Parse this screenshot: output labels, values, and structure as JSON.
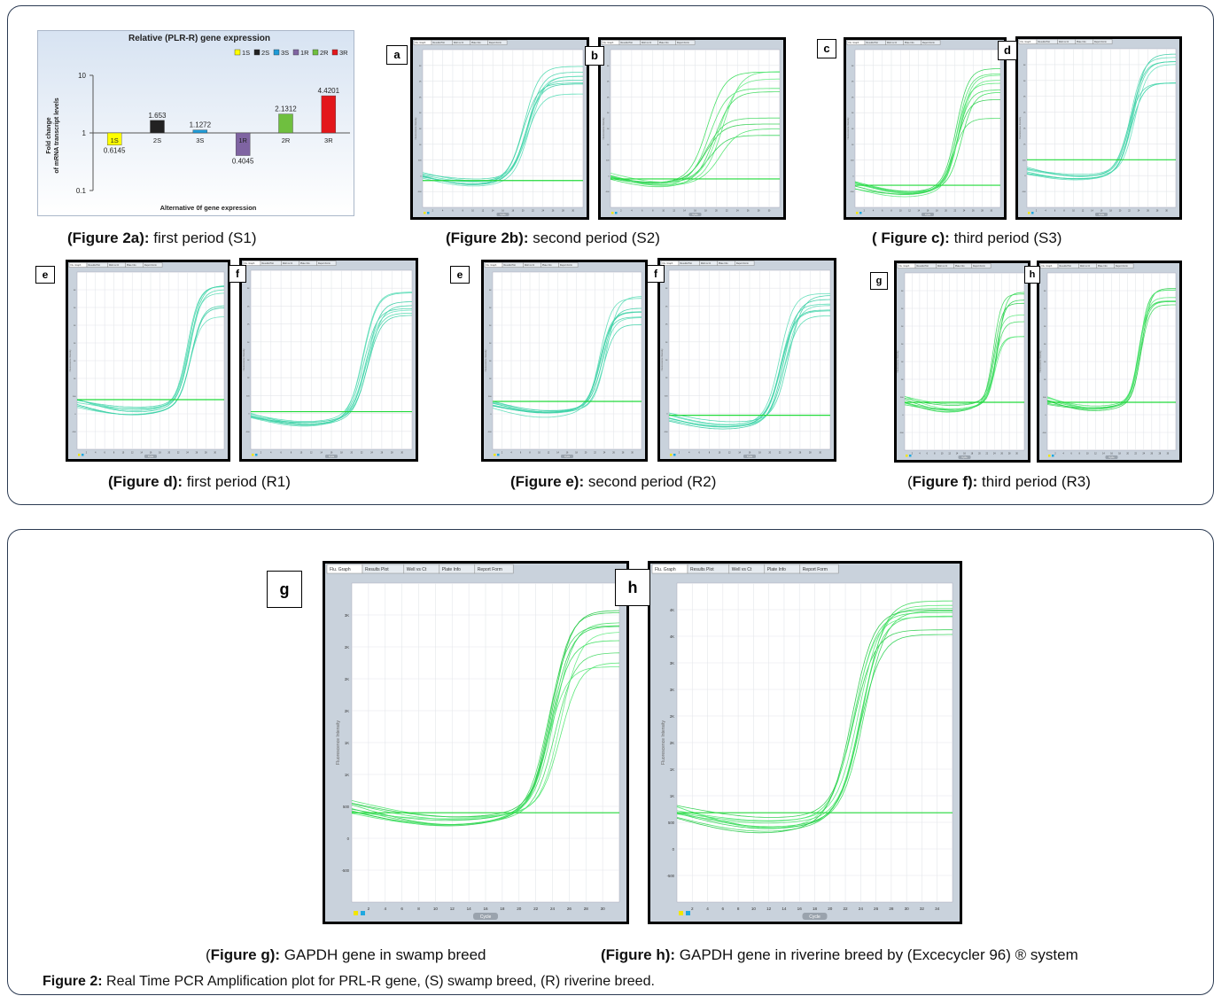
{
  "top_captions": {
    "a": {
      "bold": "(Figure 2a):",
      "text": " first period (S1)"
    },
    "b": {
      "bold": "(Figure 2b):",
      "text": " second period (S2)"
    },
    "c": {
      "pre": "( ",
      "bold": "Figure c):",
      "text": " third period (S3)"
    },
    "d": {
      "bold": "(Figure d):",
      "text": " first period (R1)"
    },
    "e": {
      "bold": "(Figure e):",
      "text": " second period (R2)"
    },
    "f": {
      "pre": "(",
      "bold": "Figure f):",
      "text": " third period (R3)"
    }
  },
  "panel_letters": [
    "a",
    "b",
    "c",
    "d",
    "e",
    "f",
    "e",
    "f",
    "g",
    "h",
    "g",
    "h"
  ],
  "pcr_ui": {
    "tabs": [
      "Flu. Graph",
      "Results Plot",
      "Well vs Ct",
      "Plate Info",
      "Report Form"
    ],
    "x_axis_title": "Cycle",
    "y_axis_title": "Fluorescence Intensity"
  },
  "bottom": {
    "caption_g": {
      "pre": "(",
      "bold": "Figure g):",
      "text": " GAPDH gene in swamp breed"
    },
    "caption_h": {
      "bold": "(Figure h):",
      "text": " GAPDH gene in riverine breed by (Excecycler 96) ® system"
    },
    "figure_caption": {
      "bold": "Figure 2:",
      "text": " Real Time PCR Amplification plot for PRL-R gene, (S) swamp breed, (R) riverine breed."
    },
    "g_x_ticks": [
      "2",
      "4",
      "6",
      "8",
      "10",
      "12",
      "14",
      "16",
      "18",
      "20",
      "22",
      "24",
      "26",
      "28",
      "30"
    ],
    "h_x_ticks": [
      "2",
      "4",
      "6",
      "8",
      "10",
      "12",
      "14",
      "16",
      "18",
      "20",
      "22",
      "24",
      "26",
      "28",
      "30",
      "32",
      "34"
    ],
    "g_y_ticks": [
      "3K",
      "2K",
      "2K",
      "2K",
      "1K",
      "1K",
      "500",
      "0",
      "-500"
    ],
    "h_y_ticks": [
      "4K",
      "4K",
      "3K",
      "3K",
      "2K",
      "2K",
      "1K",
      "1K",
      "500",
      "0",
      "-500"
    ]
  },
  "chart_data": {
    "type": "bar",
    "title": "Relative (PLR-R) gene expression",
    "ylabel": "Fold change\nof mRNA transcript levels",
    "xlabel": "Alternative 0f gene expression",
    "yscale": "log",
    "ylim": [
      0.1,
      10
    ],
    "y_ticks": [
      "10",
      "1",
      "0.1"
    ],
    "categories": [
      "1S",
      "2S",
      "3S",
      "1R",
      "2R",
      "3R"
    ],
    "values": [
      0.6145,
      1.653,
      1.1272,
      0.4045,
      2.1312,
      4.4201
    ],
    "value_labels": [
      "0.6145",
      "1.653",
      "1.1272",
      "0.4045",
      "2.1312",
      "4.4201"
    ],
    "colors": [
      "#ffff00",
      "#222222",
      "#1f9bd7",
      "#7f64a2",
      "#6fbf3f",
      "#e3171b"
    ],
    "legend": [
      "1S",
      "2S",
      "3S",
      "1R",
      "2R",
      "3R"
    ],
    "legend_position": "top-right"
  }
}
